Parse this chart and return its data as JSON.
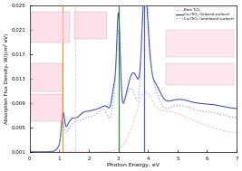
{
  "title": "",
  "xlabel": "Photon Energy, eV",
  "ylabel": "Absorption Flux Density, W/(cm² eV)",
  "xlim": [
    0,
    7
  ],
  "ylim": [
    0.001,
    0.025
  ],
  "yticks": [
    0.001,
    0.005,
    0.009,
    0.013,
    0.017,
    0.021,
    0.025
  ],
  "xticks": [
    0,
    1,
    2,
    3,
    4,
    5,
    6,
    7
  ],
  "legend_entries": [
    {
      "label": "Bare TiO₂",
      "color": "#ffaaaa",
      "style": "dashed"
    },
    {
      "label": "Cu₅/TiO₂ (relaxed surface)",
      "color": "#3344bb",
      "style": "solid"
    },
    {
      "label": "Cu₅/TiO₂ (unrelaxed surface)",
      "color": "#7788cc",
      "style": "dotted"
    }
  ],
  "vline_green": 3.0,
  "vline_blue": 3.87,
  "vline_orange": 1.12,
  "vline_pink_dashed": 1.55,
  "background_color": "#ffffff",
  "axis_bg": "#ffffff"
}
